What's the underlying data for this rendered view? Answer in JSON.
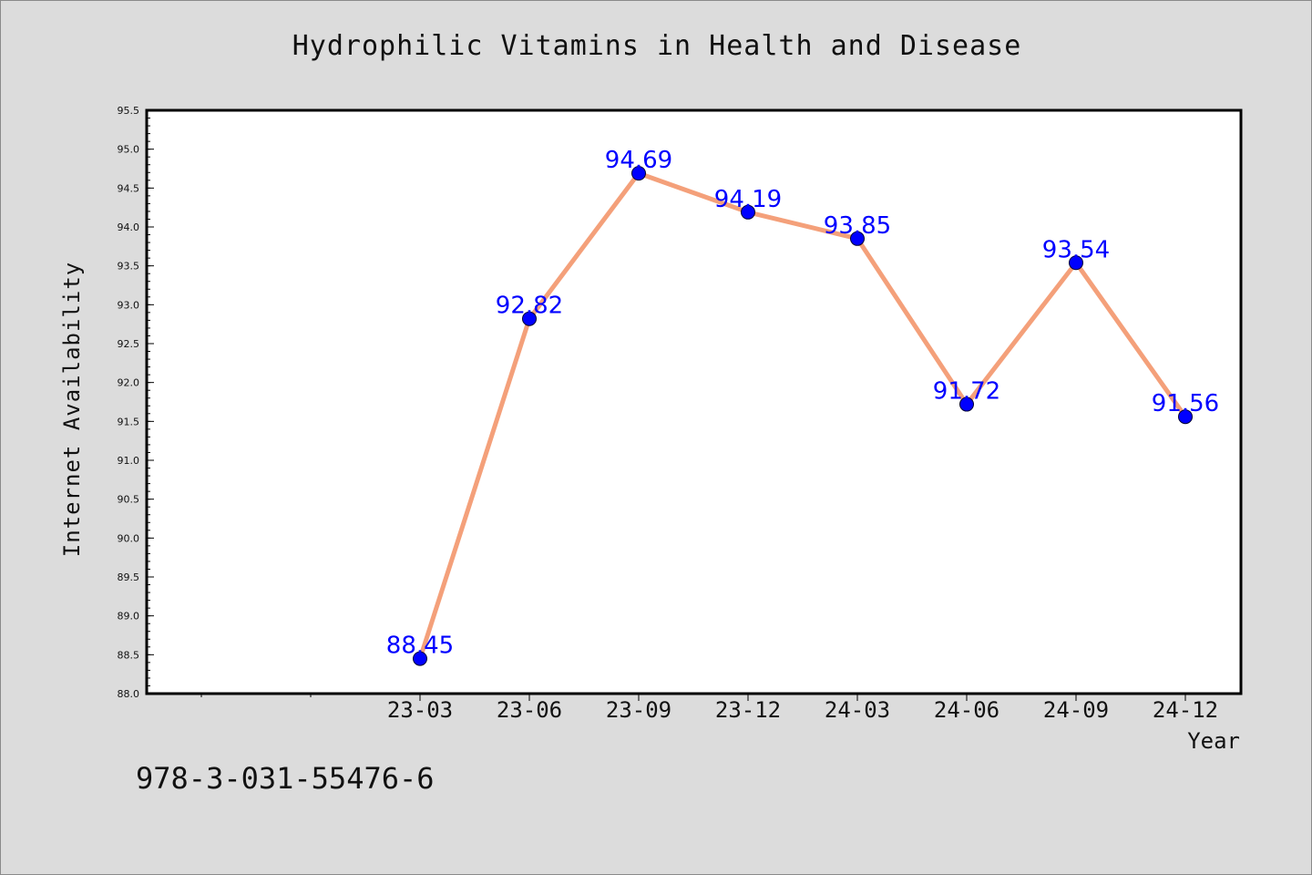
{
  "chart_data": {
    "type": "line",
    "title": "Hydrophilic Vitamins in Health and Disease",
    "xlabel": "Year",
    "ylabel": "Internet Availability",
    "categories": [
      "23-03",
      "23-06",
      "23-09",
      "23-12",
      "24-03",
      "24-06",
      "24-09",
      "24-12"
    ],
    "values": [
      88.45,
      92.82,
      94.69,
      94.19,
      93.85,
      91.72,
      93.54,
      91.56
    ],
    "value_labels": [
      "88.45",
      "92.82",
      "94.69",
      "94.19",
      "93.85",
      "91.72",
      "93.54",
      "91.56"
    ],
    "ylim": [
      88.0,
      95.5
    ],
    "yticks": [
      "88.0",
      "88.5",
      "89.0",
      "89.5",
      "90.0",
      "90.5",
      "91.0",
      "91.5",
      "92.0",
      "92.5",
      "93.0",
      "93.5",
      "94.0",
      "94.5",
      "95.0",
      "95.5"
    ],
    "grid": false,
    "legend": "none",
    "colors": {
      "line": "#f4a07a",
      "marker": "#0000ff",
      "label": "#0000ff",
      "plot_bg": "#ffffff",
      "page_bg": "#dcdcdc"
    }
  },
  "footer": {
    "isbn": "978-3-031-55476-6"
  }
}
